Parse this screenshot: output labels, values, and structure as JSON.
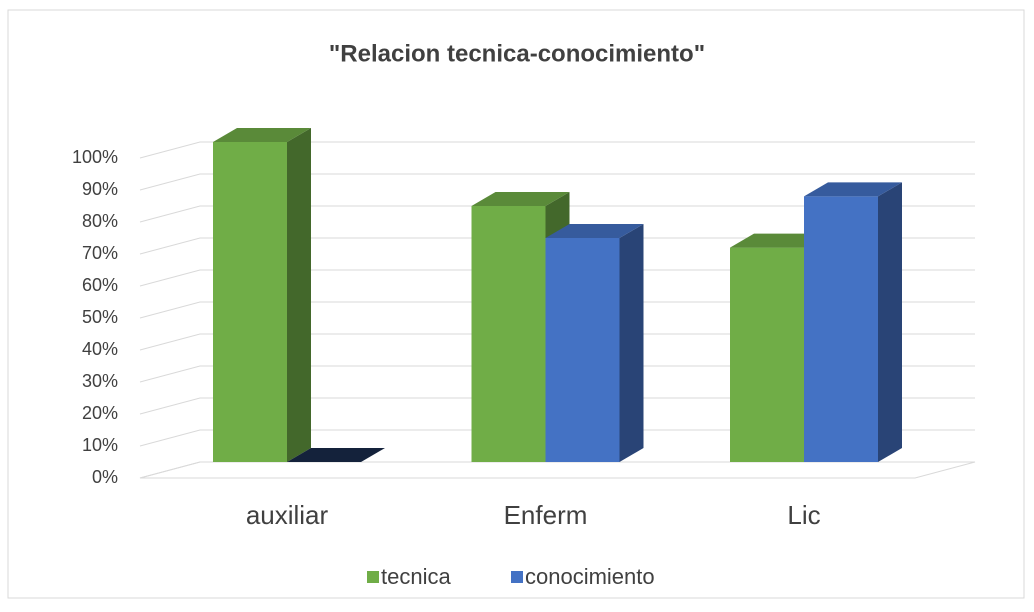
{
  "chart_data": {
    "type": "bar3d",
    "title": "\"Relacion tecnica-conocimiento\"",
    "categories": [
      "auxiliar",
      "Enferm",
      "Lic"
    ],
    "series": [
      {
        "name": "tecnica",
        "color": "#70ad47",
        "values": [
          100,
          80,
          67
        ]
      },
      {
        "name": "conocimiento",
        "color": "#4472c4",
        "values": [
          0,
          70,
          83
        ]
      }
    ],
    "ylim": [
      0,
      100
    ],
    "yticks": [
      {
        "value": 0,
        "label": "0%"
      },
      {
        "value": 10,
        "label": "10%"
      },
      {
        "value": 20,
        "label": "20%"
      },
      {
        "value": 30,
        "label": "30%"
      },
      {
        "value": 40,
        "label": "40%"
      },
      {
        "value": 50,
        "label": "50%"
      },
      {
        "value": 60,
        "label": "60%"
      },
      {
        "value": 70,
        "label": "70%"
      },
      {
        "value": 80,
        "label": "80%"
      },
      {
        "value": 90,
        "label": "90%"
      },
      {
        "value": 100,
        "label": "100%"
      }
    ],
    "grid": true,
    "legend": "bottom"
  }
}
